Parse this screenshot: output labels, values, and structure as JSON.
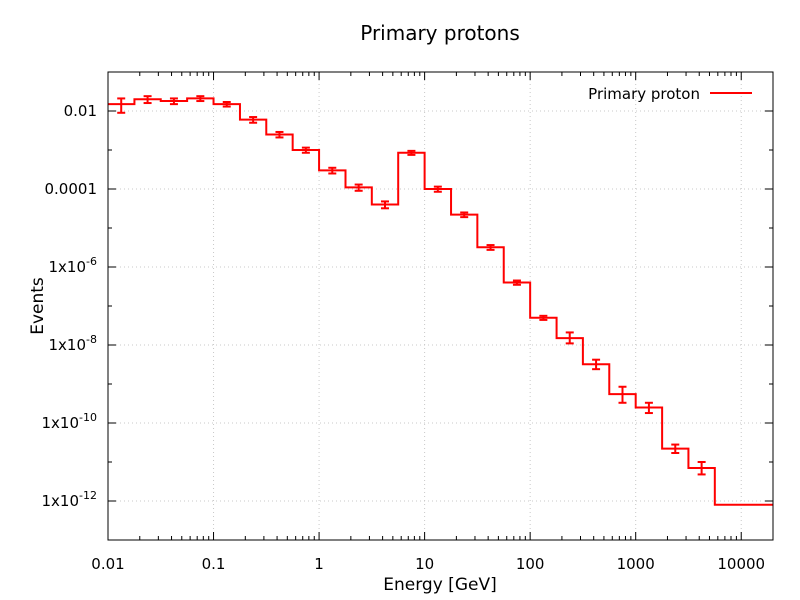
{
  "chart_data": {
    "type": "line",
    "style": "step-histogram-with-error-bars",
    "title": "Primary protons",
    "xlabel": "Energy [GeV]",
    "ylabel": "Events",
    "xscale": "log",
    "yscale": "log",
    "xlim": [
      0.01,
      20000
    ],
    "ylim": [
      1e-13,
      0.1
    ],
    "grid": true,
    "legend_position": "top-right",
    "colors": {
      "series": "#ff0000",
      "grid": "#c8c8c8",
      "axis": "#000000"
    },
    "x_ticks": [
      {
        "value": 0.01,
        "label": "0.01"
      },
      {
        "value": 0.1,
        "label": "0.1"
      },
      {
        "value": 1,
        "label": "1"
      },
      {
        "value": 10,
        "label": "10"
      },
      {
        "value": 100,
        "label": "100"
      },
      {
        "value": 1000,
        "label": "1000"
      },
      {
        "value": 10000,
        "label": "10000"
      }
    ],
    "y_ticks": [
      {
        "value": 0.01,
        "base": "0.01",
        "exp": ""
      },
      {
        "value": 0.0001,
        "base": "0.0001",
        "exp": ""
      },
      {
        "value": 1e-06,
        "base": "1x10",
        "exp": "-6"
      },
      {
        "value": 1e-08,
        "base": "1x10",
        "exp": "-8"
      },
      {
        "value": 1e-10,
        "base": "1x10",
        "exp": "-10"
      },
      {
        "value": 1e-12,
        "base": "1x10",
        "exp": "-12"
      }
    ],
    "series": [
      {
        "name": "Primary proton",
        "bin_edges": [
          0.01,
          0.0178,
          0.0316,
          0.0562,
          0.1,
          0.178,
          0.316,
          0.562,
          1,
          1.78,
          3.16,
          5.62,
          10,
          17.8,
          31.6,
          56.2,
          100,
          178,
          316,
          562,
          1000,
          1780,
          3160,
          5620,
          10000,
          17800,
          20000
        ],
        "values": [
          0.015,
          0.02,
          0.018,
          0.021,
          0.015,
          0.006,
          0.0025,
          0.001,
          0.0003,
          0.00011,
          4e-05,
          0.00085,
          0.0001,
          2.2e-05,
          3.2e-06,
          4e-07,
          5e-08,
          1.5e-08,
          3.2e-09,
          5.5e-10,
          2.5e-10,
          2.2e-11,
          7e-12,
          8e-13,
          8e-13,
          8e-13
        ],
        "err_low": [
          0.006,
          0.004,
          0.003,
          0.003,
          0.002,
          0.001,
          0.0004,
          0.00015,
          5e-05,
          2e-05,
          8e-06,
          0.0001,
          1.5e-05,
          3e-06,
          4.5e-07,
          5e-08,
          6e-09,
          4e-09,
          8e-10,
          2.2e-10,
          7e-11,
          5e-12,
          2.2e-12,
          0,
          0,
          0
        ],
        "err_high": [
          0.006,
          0.004,
          0.003,
          0.003,
          0.002,
          0.001,
          0.0004,
          0.00015,
          5e-05,
          2e-05,
          8e-06,
          0.0001,
          1.5e-05,
          3e-06,
          4.5e-07,
          5e-08,
          6e-09,
          6e-09,
          1e-09,
          3e-10,
          8e-11,
          6e-12,
          3e-12,
          0,
          0,
          0
        ]
      }
    ]
  }
}
